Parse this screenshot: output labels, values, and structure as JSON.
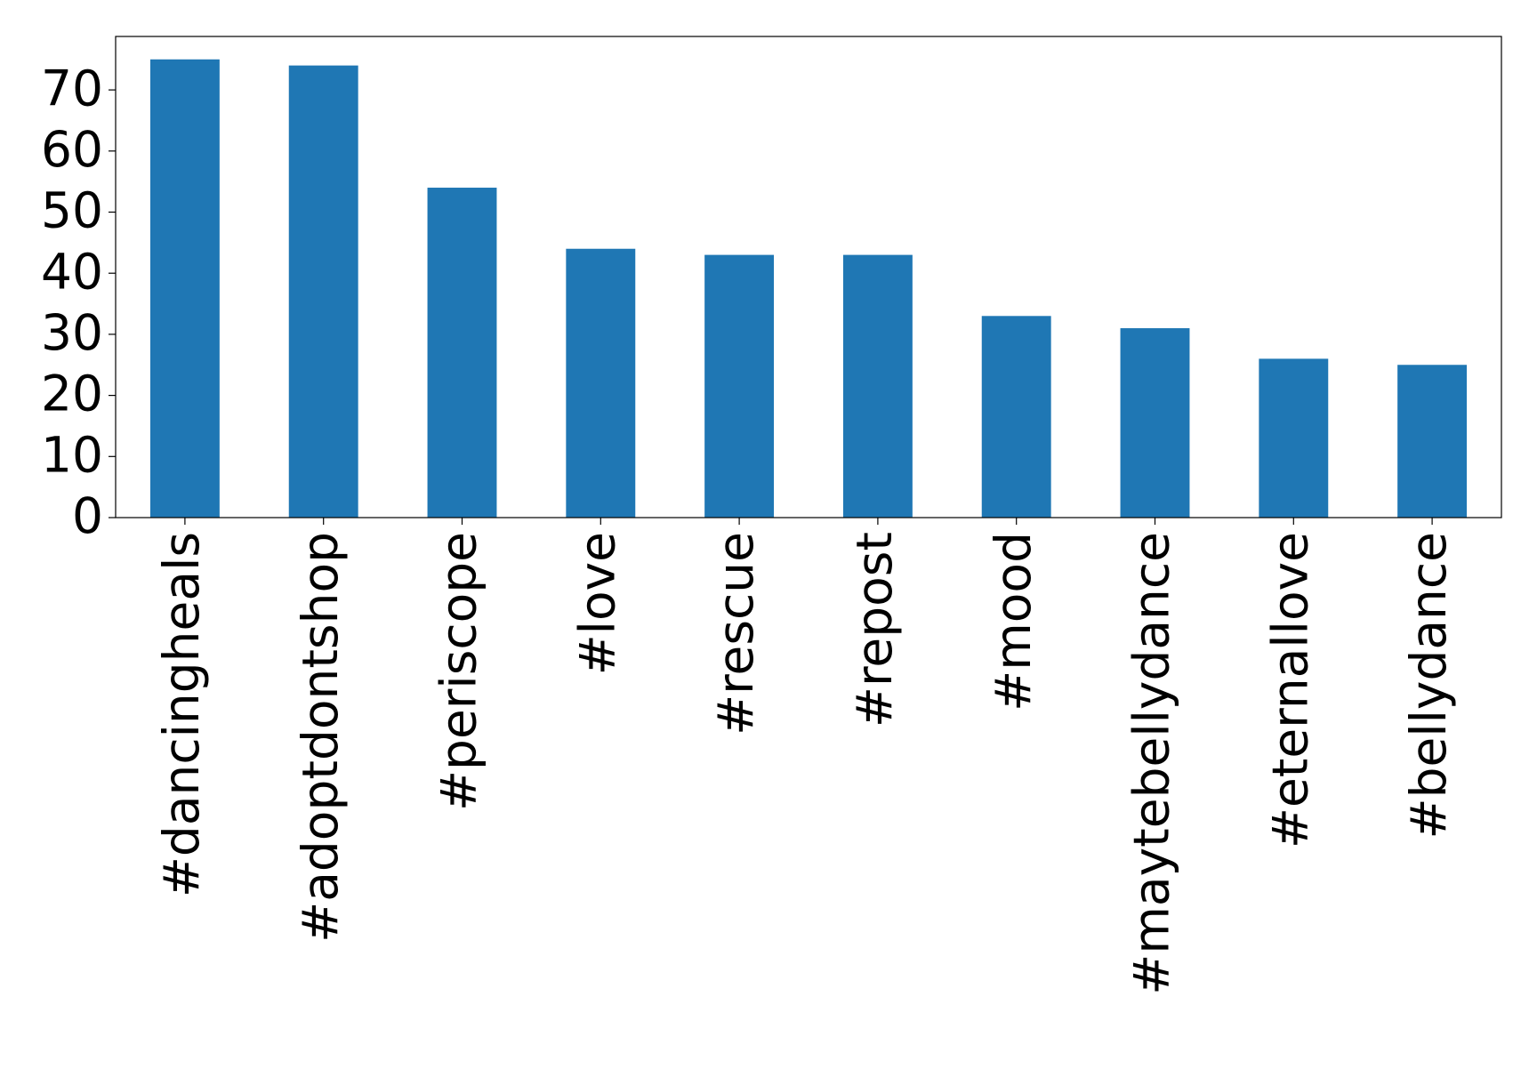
{
  "chart_data": {
    "type": "bar",
    "categories": [
      "#dancingheals",
      "#adoptdontshop",
      "#periscope",
      "#love",
      "#rescue",
      "#repost",
      "#mood",
      "#maytebellydance",
      "#eternallove",
      "#bellydance"
    ],
    "values": [
      75,
      74,
      54,
      44,
      43,
      43,
      33,
      31,
      26,
      25
    ],
    "color": "#1f77b4",
    "ylim": [
      0,
      78.75
    ],
    "yticks": [
      0,
      10,
      20,
      30,
      40,
      50,
      60,
      70
    ],
    "grid": false
  }
}
